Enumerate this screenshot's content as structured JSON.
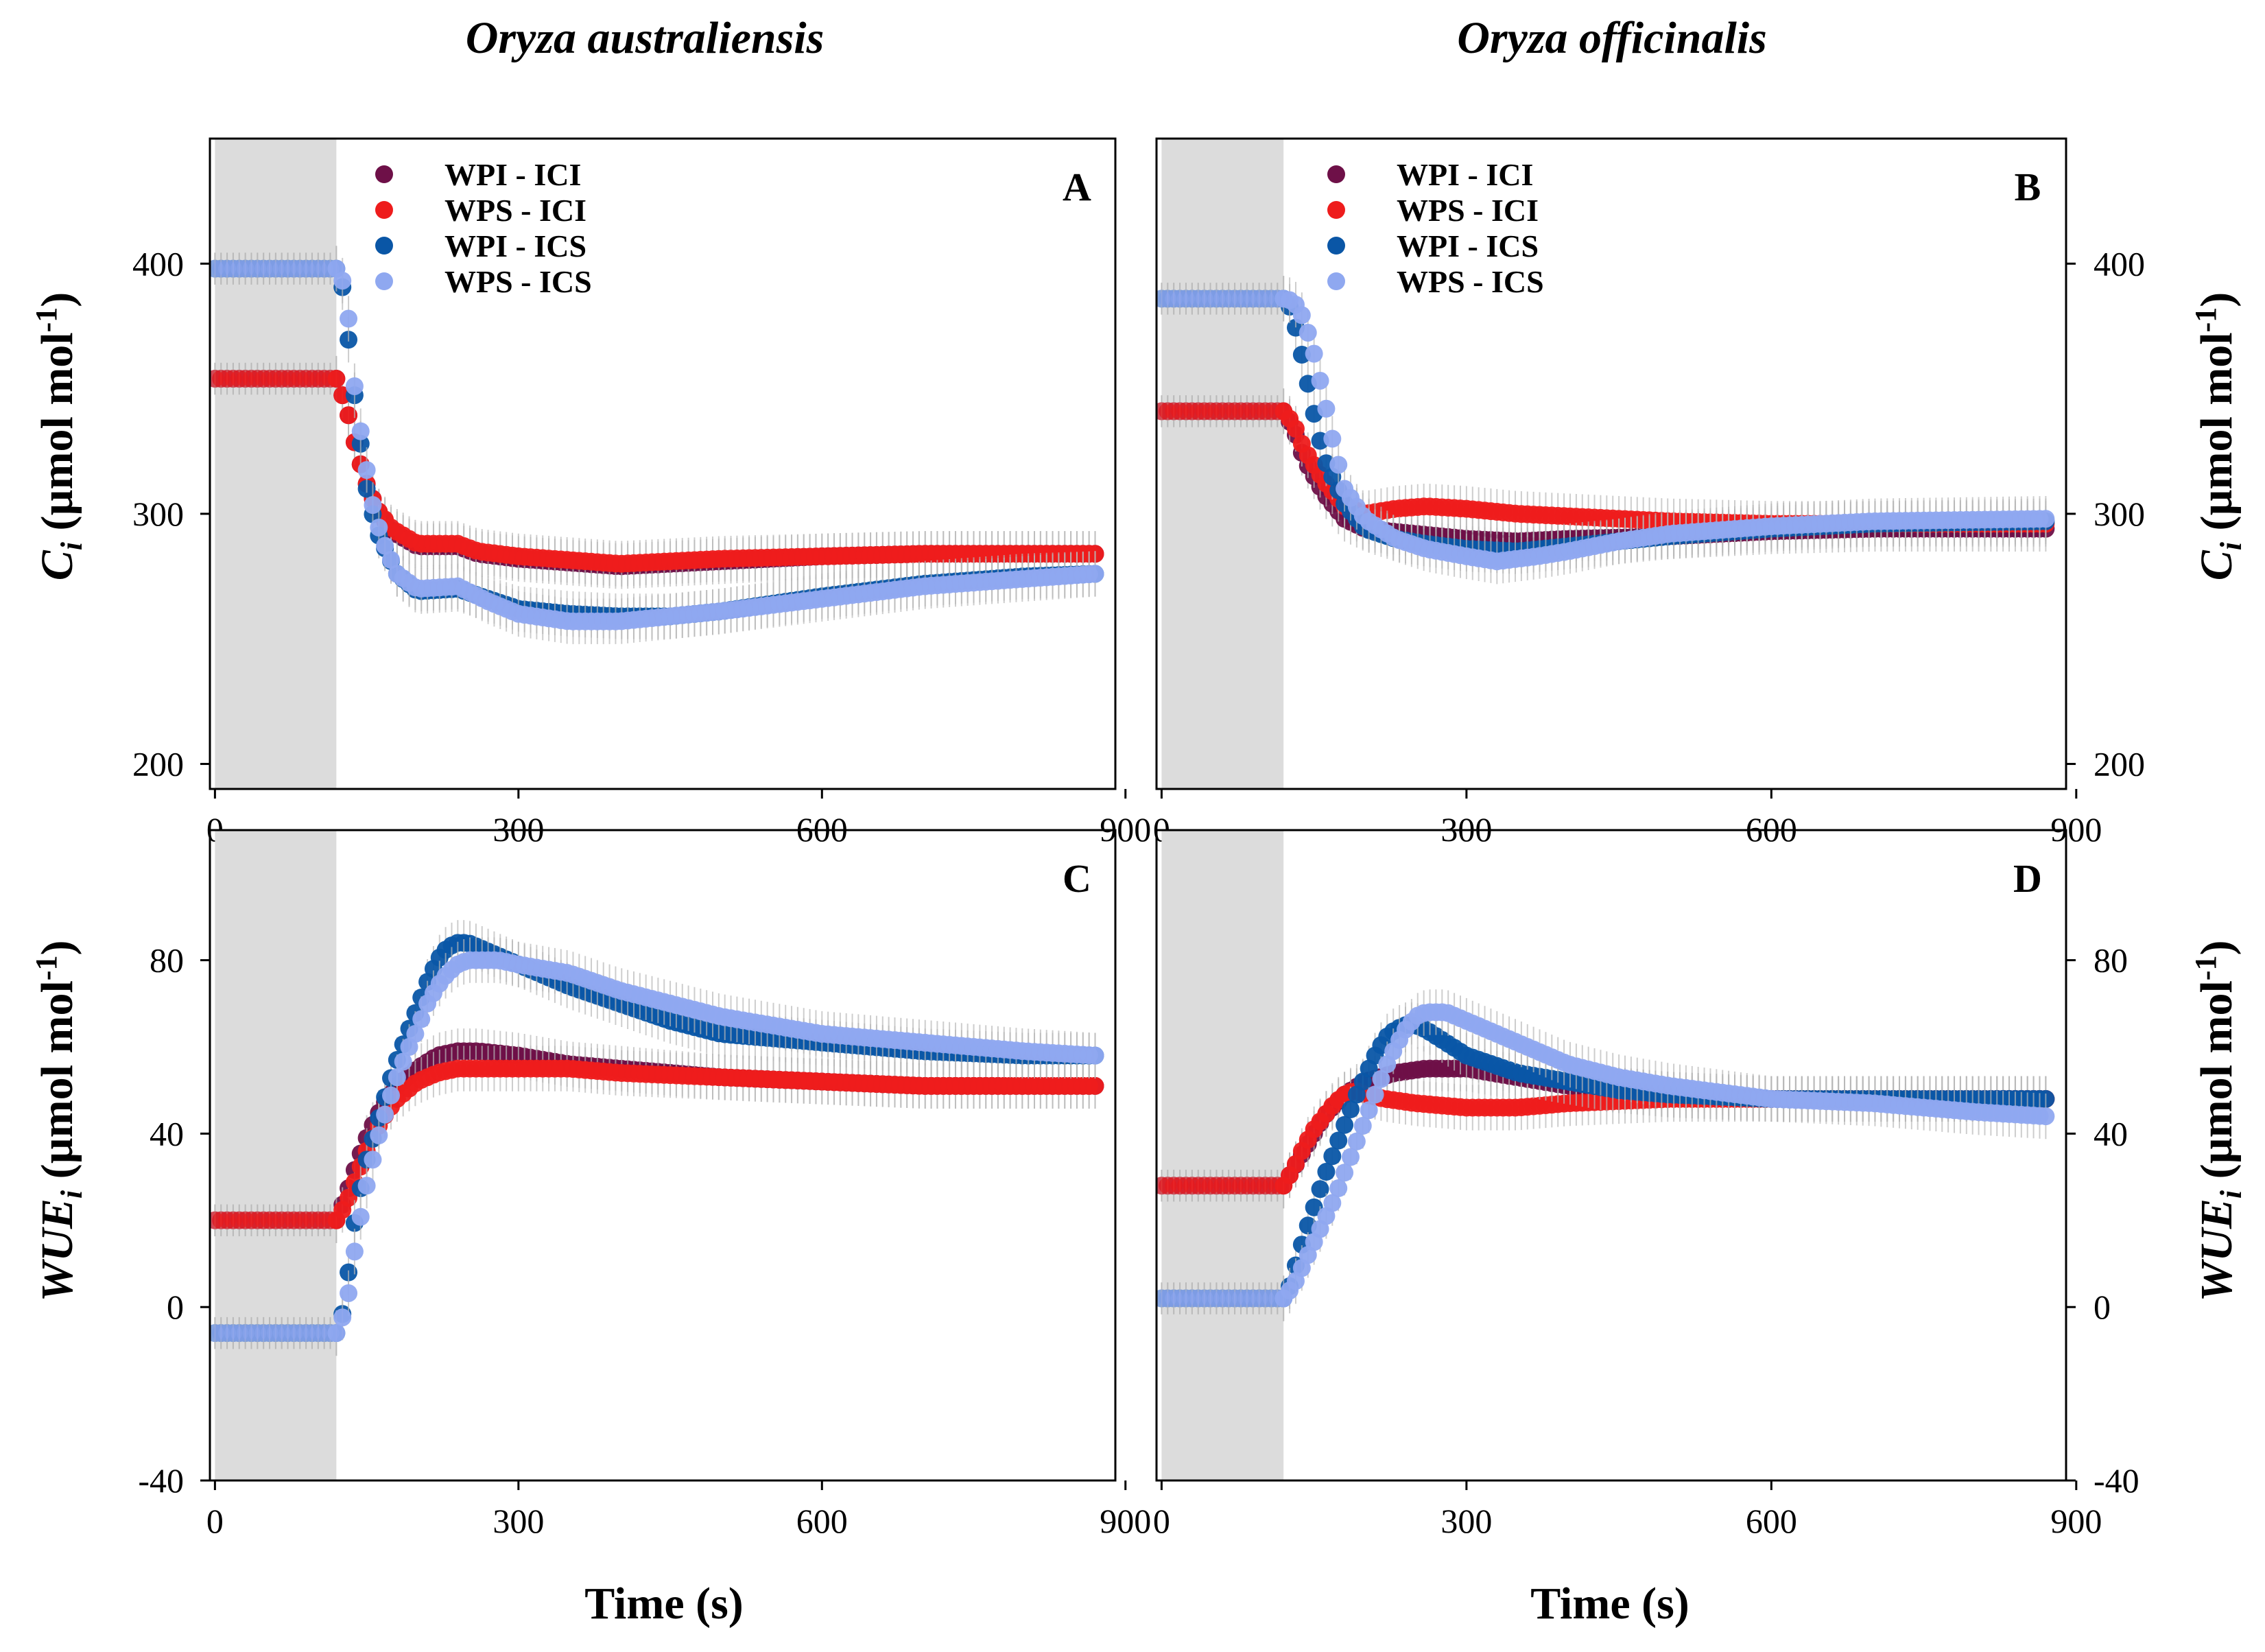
{
  "figure": {
    "column_titles": [
      "Oryza australiensis",
      "Oryza officinalis"
    ],
    "x_title": "Time (s)"
  },
  "series_colors": {
    "WPI - ICI": "#6e1048",
    "WPS - ICI": "#ee1c1c",
    "WPI - ICS": "#0a56a6",
    "WPS - ICS": "#8fa8f0"
  },
  "shade_color": "#dcdcdc",
  "chart_data": [
    {
      "type": "scatter",
      "panel": "A",
      "title": "",
      "xlabel": "Time (s)",
      "ylabel": "Ci (µmol mol-1)",
      "ylabel_parts": {
        "var": "C",
        "sub": "i",
        "unit": " (µmol mol",
        "sup": "-1",
        "close": ")"
      },
      "xlim": [
        -5,
        890
      ],
      "ylim": [
        190,
        450
      ],
      "xticks": [
        0,
        300,
        600,
        900
      ],
      "yticks": [
        200,
        300,
        400
      ],
      "shaded_interval": [
        0,
        120
      ],
      "legend": "top-left",
      "series": [
        {
          "name": "WPI - ICI",
          "x": [
            0,
            120,
            130,
            140,
            150,
            160,
            175,
            200,
            240,
            260,
            300,
            400,
            500,
            600,
            700,
            870
          ],
          "y": [
            354,
            354,
            343,
            325,
            312,
            302,
            293,
            287,
            287,
            284,
            282,
            279,
            281,
            283,
            284,
            284
          ]
        },
        {
          "name": "WPS - ICI",
          "x": [
            0,
            120,
            130,
            140,
            150,
            160,
            175,
            200,
            240,
            260,
            300,
            400,
            500,
            600,
            700,
            870
          ],
          "y": [
            354,
            354,
            343,
            325,
            312,
            302,
            294,
            288,
            288,
            285,
            283,
            280,
            282,
            283,
            284,
            284
          ]
        },
        {
          "name": "WPI - ICS",
          "x": [
            0,
            120,
            125,
            130,
            140,
            150,
            160,
            180,
            200,
            240,
            270,
            300,
            350,
            400,
            450,
            500,
            600,
            700,
            800,
            870
          ],
          "y": [
            398,
            398,
            394,
            377,
            340,
            310,
            293,
            276,
            269,
            270,
            266,
            262,
            260,
            259,
            259,
            261,
            267,
            272,
            275,
            276
          ]
        },
        {
          "name": "WPS - ICS",
          "x": [
            0,
            120,
            130,
            135,
            145,
            155,
            165,
            180,
            200,
            240,
            270,
            300,
            350,
            400,
            450,
            500,
            600,
            700,
            800,
            870
          ],
          "y": [
            398,
            398,
            390,
            360,
            330,
            305,
            290,
            276,
            270,
            271,
            265,
            260,
            257,
            257,
            259,
            261,
            266,
            271,
            274,
            276
          ]
        }
      ]
    },
    {
      "type": "scatter",
      "panel": "B",
      "title": "",
      "xlabel": "Time (s)",
      "ylabel": "Ci (µmol mol-1)",
      "ylabel_parts": {
        "var": "C",
        "sub": "i",
        "unit": " (µmol mol",
        "sup": "-1",
        "close": ")"
      },
      "xlim": [
        -5,
        890
      ],
      "ylim": [
        190,
        450
      ],
      "xticks": [
        0,
        300,
        600,
        900
      ],
      "yticks": [
        200,
        300,
        400
      ],
      "shaded_interval": [
        0,
        120
      ],
      "legend": "top-left",
      "series": [
        {
          "name": "WPI - ICI",
          "x": [
            0,
            120,
            130,
            140,
            160,
            180,
            200,
            250,
            300,
            350,
            400,
            500,
            600,
            700,
            870
          ],
          "y": [
            341,
            341,
            334,
            322,
            308,
            298,
            294,
            292,
            290,
            289,
            290,
            291,
            293,
            294,
            294
          ]
        },
        {
          "name": "WPS - ICI",
          "x": [
            0,
            120,
            130,
            140,
            160,
            180,
            200,
            230,
            260,
            300,
            350,
            400,
            500,
            600,
            700,
            870
          ],
          "y": [
            341,
            341,
            336,
            326,
            313,
            303,
            300,
            302,
            303,
            302,
            300,
            299,
            297,
            296,
            296,
            296
          ]
        },
        {
          "name": "WPI - ICS",
          "x": [
            0,
            120,
            125,
            130,
            140,
            150,
            160,
            180,
            200,
            230,
            260,
            300,
            350,
            400,
            450,
            500,
            600,
            700,
            870
          ],
          "y": [
            386,
            386,
            384,
            378,
            360,
            340,
            322,
            304,
            294,
            290,
            288,
            286,
            285,
            287,
            289,
            291,
            294,
            296,
            297
          ]
        },
        {
          "name": "WPS - ICS",
          "x": [
            0,
            120,
            130,
            140,
            150,
            160,
            170,
            180,
            200,
            230,
            260,
            300,
            330,
            370,
            400,
            450,
            500,
            600,
            700,
            870
          ],
          "y": [
            386,
            386,
            385,
            378,
            364,
            346,
            326,
            310,
            298,
            290,
            286,
            283,
            281,
            283,
            285,
            289,
            292,
            295,
            297,
            298
          ]
        }
      ]
    },
    {
      "type": "scatter",
      "panel": "C",
      "title": "",
      "xlabel": "Time (s)",
      "ylabel": "WUEi (µmol mol-1)",
      "ylabel_parts": {
        "var": "WUE",
        "sub": "i",
        "unit": " (µmol mol",
        "sup": "-1",
        "close": ")"
      },
      "xlim": [
        -5,
        890
      ],
      "ylim": [
        -40,
        110
      ],
      "xticks": [
        0,
        300,
        600,
        900
      ],
      "yticks": [
        -40,
        0,
        40,
        80
      ],
      "shaded_interval": [
        0,
        120
      ],
      "legend": "none",
      "series": [
        {
          "name": "WPI - ICI",
          "x": [
            0,
            120,
            130,
            140,
            150,
            160,
            170,
            180,
            200,
            220,
            240,
            260,
            300,
            350,
            400,
            500,
            600,
            700,
            870
          ],
          "y": [
            20,
            20,
            26,
            33,
            39,
            44,
            48,
            51,
            55,
            58,
            59,
            59,
            58,
            56,
            55,
            53,
            52,
            51,
            51
          ]
        },
        {
          "name": "WPS - ICI",
          "x": [
            0,
            120,
            130,
            140,
            150,
            160,
            170,
            180,
            200,
            220,
            240,
            260,
            300,
            350,
            400,
            500,
            600,
            700,
            870
          ],
          "y": [
            20,
            20,
            24,
            30,
            36,
            41,
            45,
            48,
            52,
            54,
            55,
            55,
            55,
            55,
            54,
            53,
            52,
            51,
            51
          ]
        },
        {
          "name": "WPI - ICS",
          "x": [
            0,
            120,
            125,
            130,
            135,
            140,
            150,
            160,
            170,
            180,
            190,
            200,
            210,
            220,
            230,
            240,
            250,
            260,
            280,
            300,
            350,
            400,
            450,
            500,
            550,
            600,
            650,
            700,
            800,
            870
          ],
          "y": [
            -6,
            -6,
            -3,
            4,
            14,
            23,
            34,
            42,
            50,
            57,
            63,
            69,
            75,
            80,
            83,
            84,
            84,
            83,
            81,
            79,
            74,
            70,
            66,
            63,
            62,
            61,
            60,
            59,
            58,
            58
          ]
        },
        {
          "name": "WPS - ICS",
          "x": [
            0,
            120,
            130,
            135,
            140,
            150,
            160,
            170,
            180,
            190,
            200,
            210,
            220,
            230,
            240,
            250,
            260,
            280,
            300,
            350,
            400,
            450,
            500,
            550,
            600,
            650,
            700,
            800,
            870
          ],
          "y": [
            -6,
            -6,
            0,
            8,
            16,
            28,
            38,
            46,
            53,
            59,
            64,
            70,
            74,
            77,
            79,
            80,
            80,
            80,
            79,
            77,
            73,
            70,
            67,
            65,
            63,
            62,
            61,
            59,
            58
          ]
        }
      ]
    },
    {
      "type": "scatter",
      "panel": "D",
      "title": "",
      "xlabel": "Time (s)",
      "ylabel": "WUEi (µmol mol-1)",
      "ylabel_parts": {
        "var": "WUE",
        "sub": "i",
        "unit": " (µmol mol",
        "sup": "-1",
        "close": ")"
      },
      "xlim": [
        -5,
        890
      ],
      "ylim": [
        -40,
        110
      ],
      "xticks": [
        0,
        300,
        600,
        900
      ],
      "yticks": [
        -40,
        0,
        40,
        80
      ],
      "shaded_interval": [
        0,
        120
      ],
      "legend": "none",
      "series": [
        {
          "name": "WPI - ICI",
          "x": [
            0,
            120,
            130,
            140,
            150,
            160,
            180,
            200,
            230,
            260,
            280,
            300,
            350,
            400,
            500,
            600,
            700,
            870
          ],
          "y": [
            28,
            28,
            32,
            36,
            40,
            44,
            49,
            52,
            54,
            55,
            55,
            55,
            53,
            51,
            49,
            48,
            48,
            48
          ]
        },
        {
          "name": "WPS - ICI",
          "x": [
            0,
            120,
            130,
            140,
            150,
            160,
            170,
            180,
            190,
            200,
            220,
            250,
            300,
            350,
            400,
            500,
            600,
            700,
            870
          ],
          "y": [
            28,
            28,
            32,
            37,
            41,
            44,
            47,
            49,
            50,
            49,
            48,
            47,
            46,
            46,
            47,
            48,
            48,
            48,
            48
          ]
        },
        {
          "name": "WPI - ICS",
          "x": [
            0,
            120,
            125,
            130,
            135,
            140,
            150,
            160,
            170,
            180,
            190,
            200,
            210,
            220,
            230,
            240,
            250,
            260,
            280,
            300,
            350,
            400,
            450,
            500,
            600,
            700,
            870
          ],
          "y": [
            2,
            2,
            4,
            8,
            12,
            16,
            23,
            30,
            36,
            42,
            48,
            53,
            58,
            62,
            64,
            65,
            65,
            64,
            61,
            58,
            54,
            52,
            50,
            49,
            48,
            48,
            48
          ]
        },
        {
          "name": "WPS - ICS",
          "x": [
            0,
            120,
            130,
            140,
            150,
            160,
            170,
            180,
            190,
            200,
            210,
            220,
            230,
            240,
            250,
            260,
            280,
            300,
            350,
            400,
            450,
            500,
            600,
            700,
            800,
            870
          ],
          "y": [
            2,
            2,
            5,
            10,
            15,
            20,
            25,
            31,
            37,
            43,
            49,
            55,
            60,
            64,
            67,
            68,
            68,
            66,
            61,
            56,
            53,
            51,
            48,
            47,
            45,
            44
          ]
        }
      ]
    }
  ]
}
